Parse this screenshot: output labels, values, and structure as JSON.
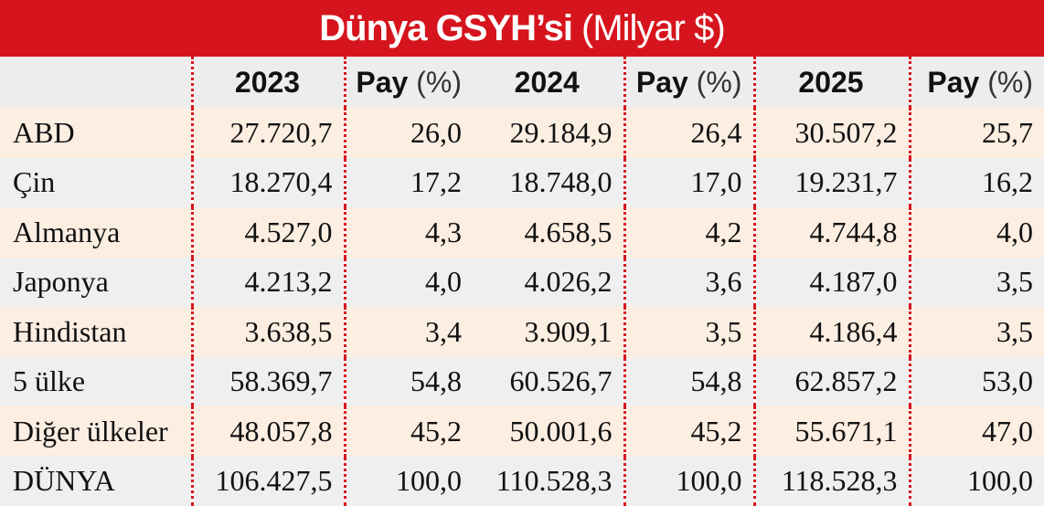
{
  "title": {
    "bold": "Dünya GSYH’si",
    "light": "(Milyar $)"
  },
  "chart_data": {
    "type": "table",
    "title": "Dünya GSYH’si (Milyar $)",
    "header": {
      "y1": "2023",
      "p1_bold": "Pay",
      "p1_rest": "(%)",
      "y2": "2024",
      "p2_bold": "Pay",
      "p2_rest": "(%)",
      "y3": "2025",
      "p3_bold": "Pay",
      "p3_rest": "(%)"
    },
    "columns": [
      "",
      "2023",
      "Pay (%)",
      "2024",
      "Pay (%)",
      "2025",
      "Pay (%)"
    ],
    "rows": [
      [
        "ABD",
        "27.720,7",
        "26,0",
        "29.184,9",
        "26,4",
        "30.507,2",
        "25,7"
      ],
      [
        "Çin",
        "18.270,4",
        "17,2",
        "18.748,0",
        "17,0",
        "19.231,7",
        "16,2"
      ],
      [
        "Almanya",
        "4.527,0",
        "4,3",
        "4.658,5",
        "4,2",
        "4.744,8",
        "4,0"
      ],
      [
        "Japonya",
        "4.213,2",
        "4,0",
        "4.026,2",
        "3,6",
        "4.187,0",
        "3,5"
      ],
      [
        "Hindistan",
        "3.638,5",
        "3,4",
        "3.909,1",
        "3,5",
        "4.186,4",
        "3,5"
      ],
      [
        "5 ülke",
        "58.369,7",
        "54,8",
        "60.526,7",
        "54,8",
        "62.857,2",
        "53,0"
      ],
      [
        "Diğer ülkeler",
        "48.057,8",
        "45,2",
        "50.001,6",
        "45,2",
        "55.671,1",
        "47,0"
      ],
      [
        "DÜNYA",
        "106.427,5",
        "100,0",
        "110.528,3",
        "100,0",
        "118.528,3",
        "100,0"
      ]
    ]
  },
  "colors": {
    "title_bg": "#d6141d",
    "row_band_a": "#fdeee2",
    "row_band_b": "#efefef",
    "divider": "#d6141d"
  }
}
